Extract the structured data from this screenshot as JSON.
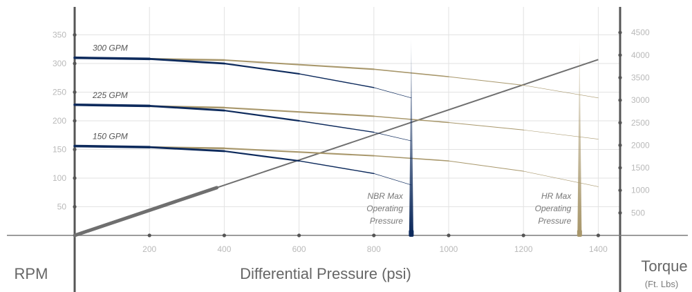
{
  "chart_data": {
    "type": "line",
    "title": "",
    "xlabel": "Differential Pressure (psi)",
    "ylabel": "RPM",
    "y2label": "Torque",
    "y2label_unit": "(Ft. Lbs)",
    "xlim": [
      0,
      1450
    ],
    "ylim": [
      0,
      350
    ],
    "y2lim": [
      0,
      4500
    ],
    "x_ticks": [
      "200",
      "400",
      "600",
      "800",
      "1000",
      "1200",
      "1400"
    ],
    "y_ticks": [
      "50",
      "100",
      "150",
      "200",
      "250",
      "300",
      "350"
    ],
    "y2_ticks": [
      "500",
      "1000",
      "1500",
      "2000",
      "2500",
      "3000",
      "3500",
      "4000",
      "4500"
    ],
    "grid": true,
    "colors": {
      "nbr": "#0d2a5c",
      "hr": "#a8976b",
      "torque": "#6f6f6f",
      "axis": "#555555",
      "grid": "#e2e2e2"
    },
    "series": [
      {
        "name": "300 GPM",
        "material": "NBR",
        "x": [
          0,
          200,
          400,
          600,
          800,
          900
        ],
        "y": [
          310,
          308,
          300,
          282,
          258,
          240
        ]
      },
      {
        "name": "225 GPM",
        "material": "NBR",
        "x": [
          0,
          200,
          400,
          600,
          800,
          900
        ],
        "y": [
          228,
          226,
          218,
          200,
          180,
          165
        ]
      },
      {
        "name": "150 GPM",
        "material": "NBR",
        "x": [
          0,
          200,
          400,
          600,
          800,
          900
        ],
        "y": [
          156,
          154,
          147,
          130,
          108,
          88
        ]
      },
      {
        "name": "300 GPM",
        "material": "HR",
        "x": [
          0,
          400,
          800,
          1000,
          1200,
          1400
        ],
        "y": [
          310,
          306,
          290,
          277,
          262,
          240
        ]
      },
      {
        "name": "225 GPM",
        "material": "HR",
        "x": [
          0,
          400,
          800,
          1000,
          1200,
          1400
        ],
        "y": [
          228,
          223,
          208,
          197,
          184,
          168
        ]
      },
      {
        "name": "150 GPM",
        "material": "HR",
        "x": [
          0,
          400,
          800,
          1000,
          1200,
          1400
        ],
        "y": [
          156,
          152,
          139,
          130,
          112,
          85
        ]
      }
    ],
    "torque_line": {
      "axis": "y2",
      "x": [
        0,
        1400
      ],
      "y": [
        0,
        3900
      ]
    },
    "limits": [
      {
        "label_lines": [
          "NBR Max",
          "Operating",
          "Pressure"
        ],
        "x": 900,
        "material": "NBR"
      },
      {
        "label_lines": [
          "HR Max",
          "Operating",
          "Pressure"
        ],
        "x": 1350,
        "material": "HR"
      }
    ]
  }
}
